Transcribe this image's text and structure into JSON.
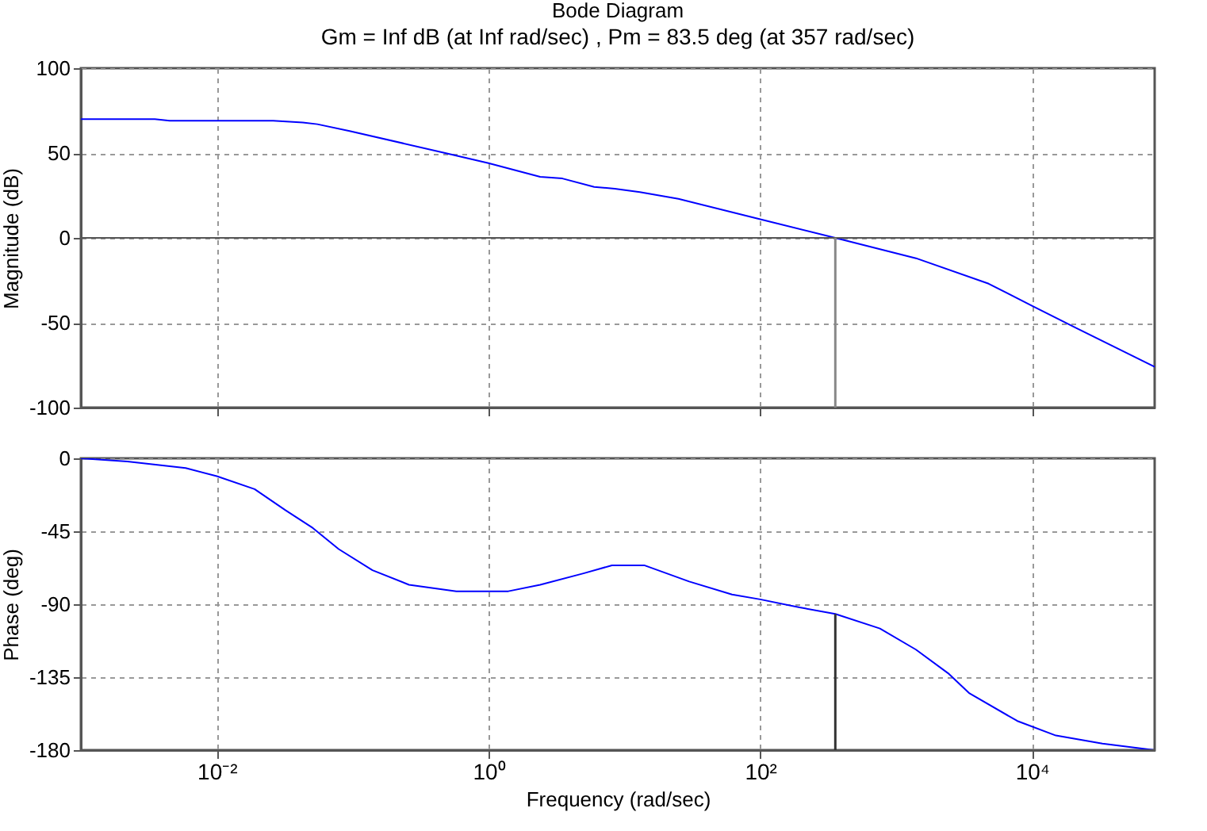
{
  "chart_data": [
    {
      "type": "line",
      "title": "Bode Diagram",
      "subtitle": "Gm = Inf dB (at Inf rad/sec) ,  Pm = 83.5 deg (at 357 rad/sec)",
      "ylabel": "Magnitude (dB)",
      "log": "x",
      "grid": true,
      "tick_labels": "y",
      "marker": "none",
      "line_style": "solid",
      "xlim": [
        0.001,
        80000
      ],
      "ylim": [
        -100,
        100
      ],
      "yticks": [
        -100,
        -50,
        0,
        50,
        100
      ],
      "xticks": [
        {
          "value": 0.01,
          "label": null
        },
        {
          "value": 1,
          "label": null
        },
        {
          "value": 100,
          "label": null
        },
        {
          "value": 10000,
          "label": null
        }
      ],
      "series": [
        {
          "color": "#0000ff",
          "x": [
            0.001,
            0.0035,
            0.0045,
            0.026,
            0.043,
            0.055,
            0.095,
            0.48,
            1,
            2.4,
            3.5,
            6,
            8.5,
            13,
            25,
            100,
            357,
            1400,
            4800,
            10000,
            21000,
            80000
          ],
          "values": [
            70,
            70,
            69,
            69,
            68,
            67,
            63,
            50,
            44,
            36,
            35,
            30,
            29,
            27,
            23,
            11,
            0,
            -12,
            -27,
            -40,
            -53,
            -76
          ]
        }
      ],
      "ref_lines": [
        {
          "axis": "y",
          "value": 0,
          "color": "#555555"
        },
        {
          "axis": "x",
          "value": 357,
          "color": "#888888"
        }
      ]
    },
    {
      "type": "line",
      "xlabel": "Frequency  (rad/sec)",
      "ylabel": "Phase (deg)",
      "log": "x",
      "grid": true,
      "marker": "none",
      "line_style": "solid",
      "xlim": [
        0.001,
        80000
      ],
      "ylim": [
        -180,
        0
      ],
      "yticks": [
        -180,
        -135,
        -90,
        -45,
        0
      ],
      "xticks": [
        {
          "value": 0.01,
          "label": "10⁻²"
        },
        {
          "value": 1,
          "label": "10⁰"
        },
        {
          "value": 100,
          "label": "10²"
        },
        {
          "value": 10000,
          "label": "10⁴"
        }
      ],
      "series": [
        {
          "color": "#0000ff",
          "x": [
            0.001,
            0.0022,
            0.0059,
            0.01,
            0.019,
            0.032,
            0.051,
            0.079,
            0.14,
            0.26,
            0.58,
            1.4,
            2.4,
            5,
            8.1,
            14,
            30,
            62,
            100,
            195,
            357,
            760,
            1400,
            2450,
            3470,
            7800,
            15000,
            33000,
            80000
          ],
          "values": [
            0,
            -2,
            -6,
            -11,
            -19,
            -32,
            -43,
            -56,
            -69,
            -78,
            -82,
            -82,
            -78,
            -71,
            -66,
            -66,
            -76,
            -84,
            -87,
            -92,
            -96,
            -105,
            -118,
            -133,
            -145,
            -162,
            -171,
            -176,
            -180
          ]
        }
      ],
      "ref_lines": [
        {
          "axis": "y",
          "value": -180,
          "color": "#555555"
        },
        {
          "axis": "x",
          "value": 357,
          "color": "#333333"
        }
      ]
    }
  ]
}
